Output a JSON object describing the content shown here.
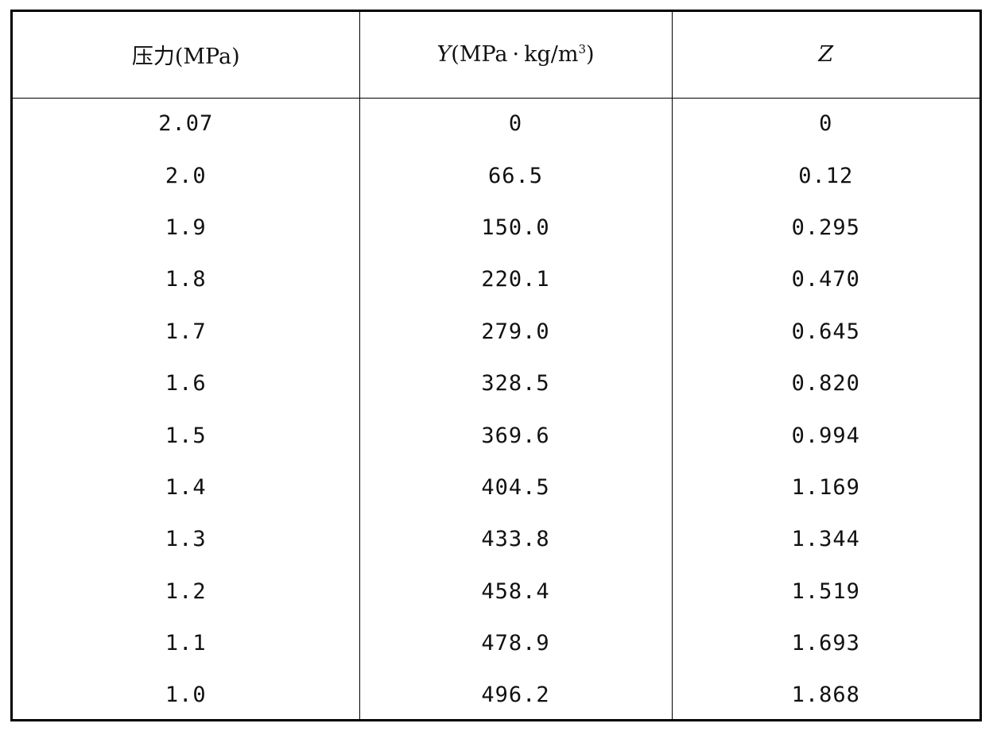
{
  "table": {
    "headers": {
      "col1": "压力(MPa)",
      "col2_var": "Y",
      "col2_unit_open": "(MPa",
      "col2_dot": "·",
      "col2_unit_rest": "kg/m",
      "col2_sup": "3",
      "col2_unit_close": ")",
      "col3": "Z"
    },
    "rows": [
      [
        "2.07",
        "0",
        "0"
      ],
      [
        "2.0",
        "66.5",
        "0.12"
      ],
      [
        "1.9",
        "150.0",
        "0.295"
      ],
      [
        "1.8",
        "220.1",
        "0.470"
      ],
      [
        "1.7",
        "279.0",
        "0.645"
      ],
      [
        "1.6",
        "328.5",
        "0.820"
      ],
      [
        "1.5",
        "369.6",
        "0.994"
      ],
      [
        "1.4",
        "404.5",
        "1.169"
      ],
      [
        "1.3",
        "433.8",
        "1.344"
      ],
      [
        "1.2",
        "458.4",
        "1.519"
      ],
      [
        "1.1",
        "478.9",
        "1.693"
      ],
      [
        "1.0",
        "496.2",
        "1.868"
      ]
    ]
  }
}
